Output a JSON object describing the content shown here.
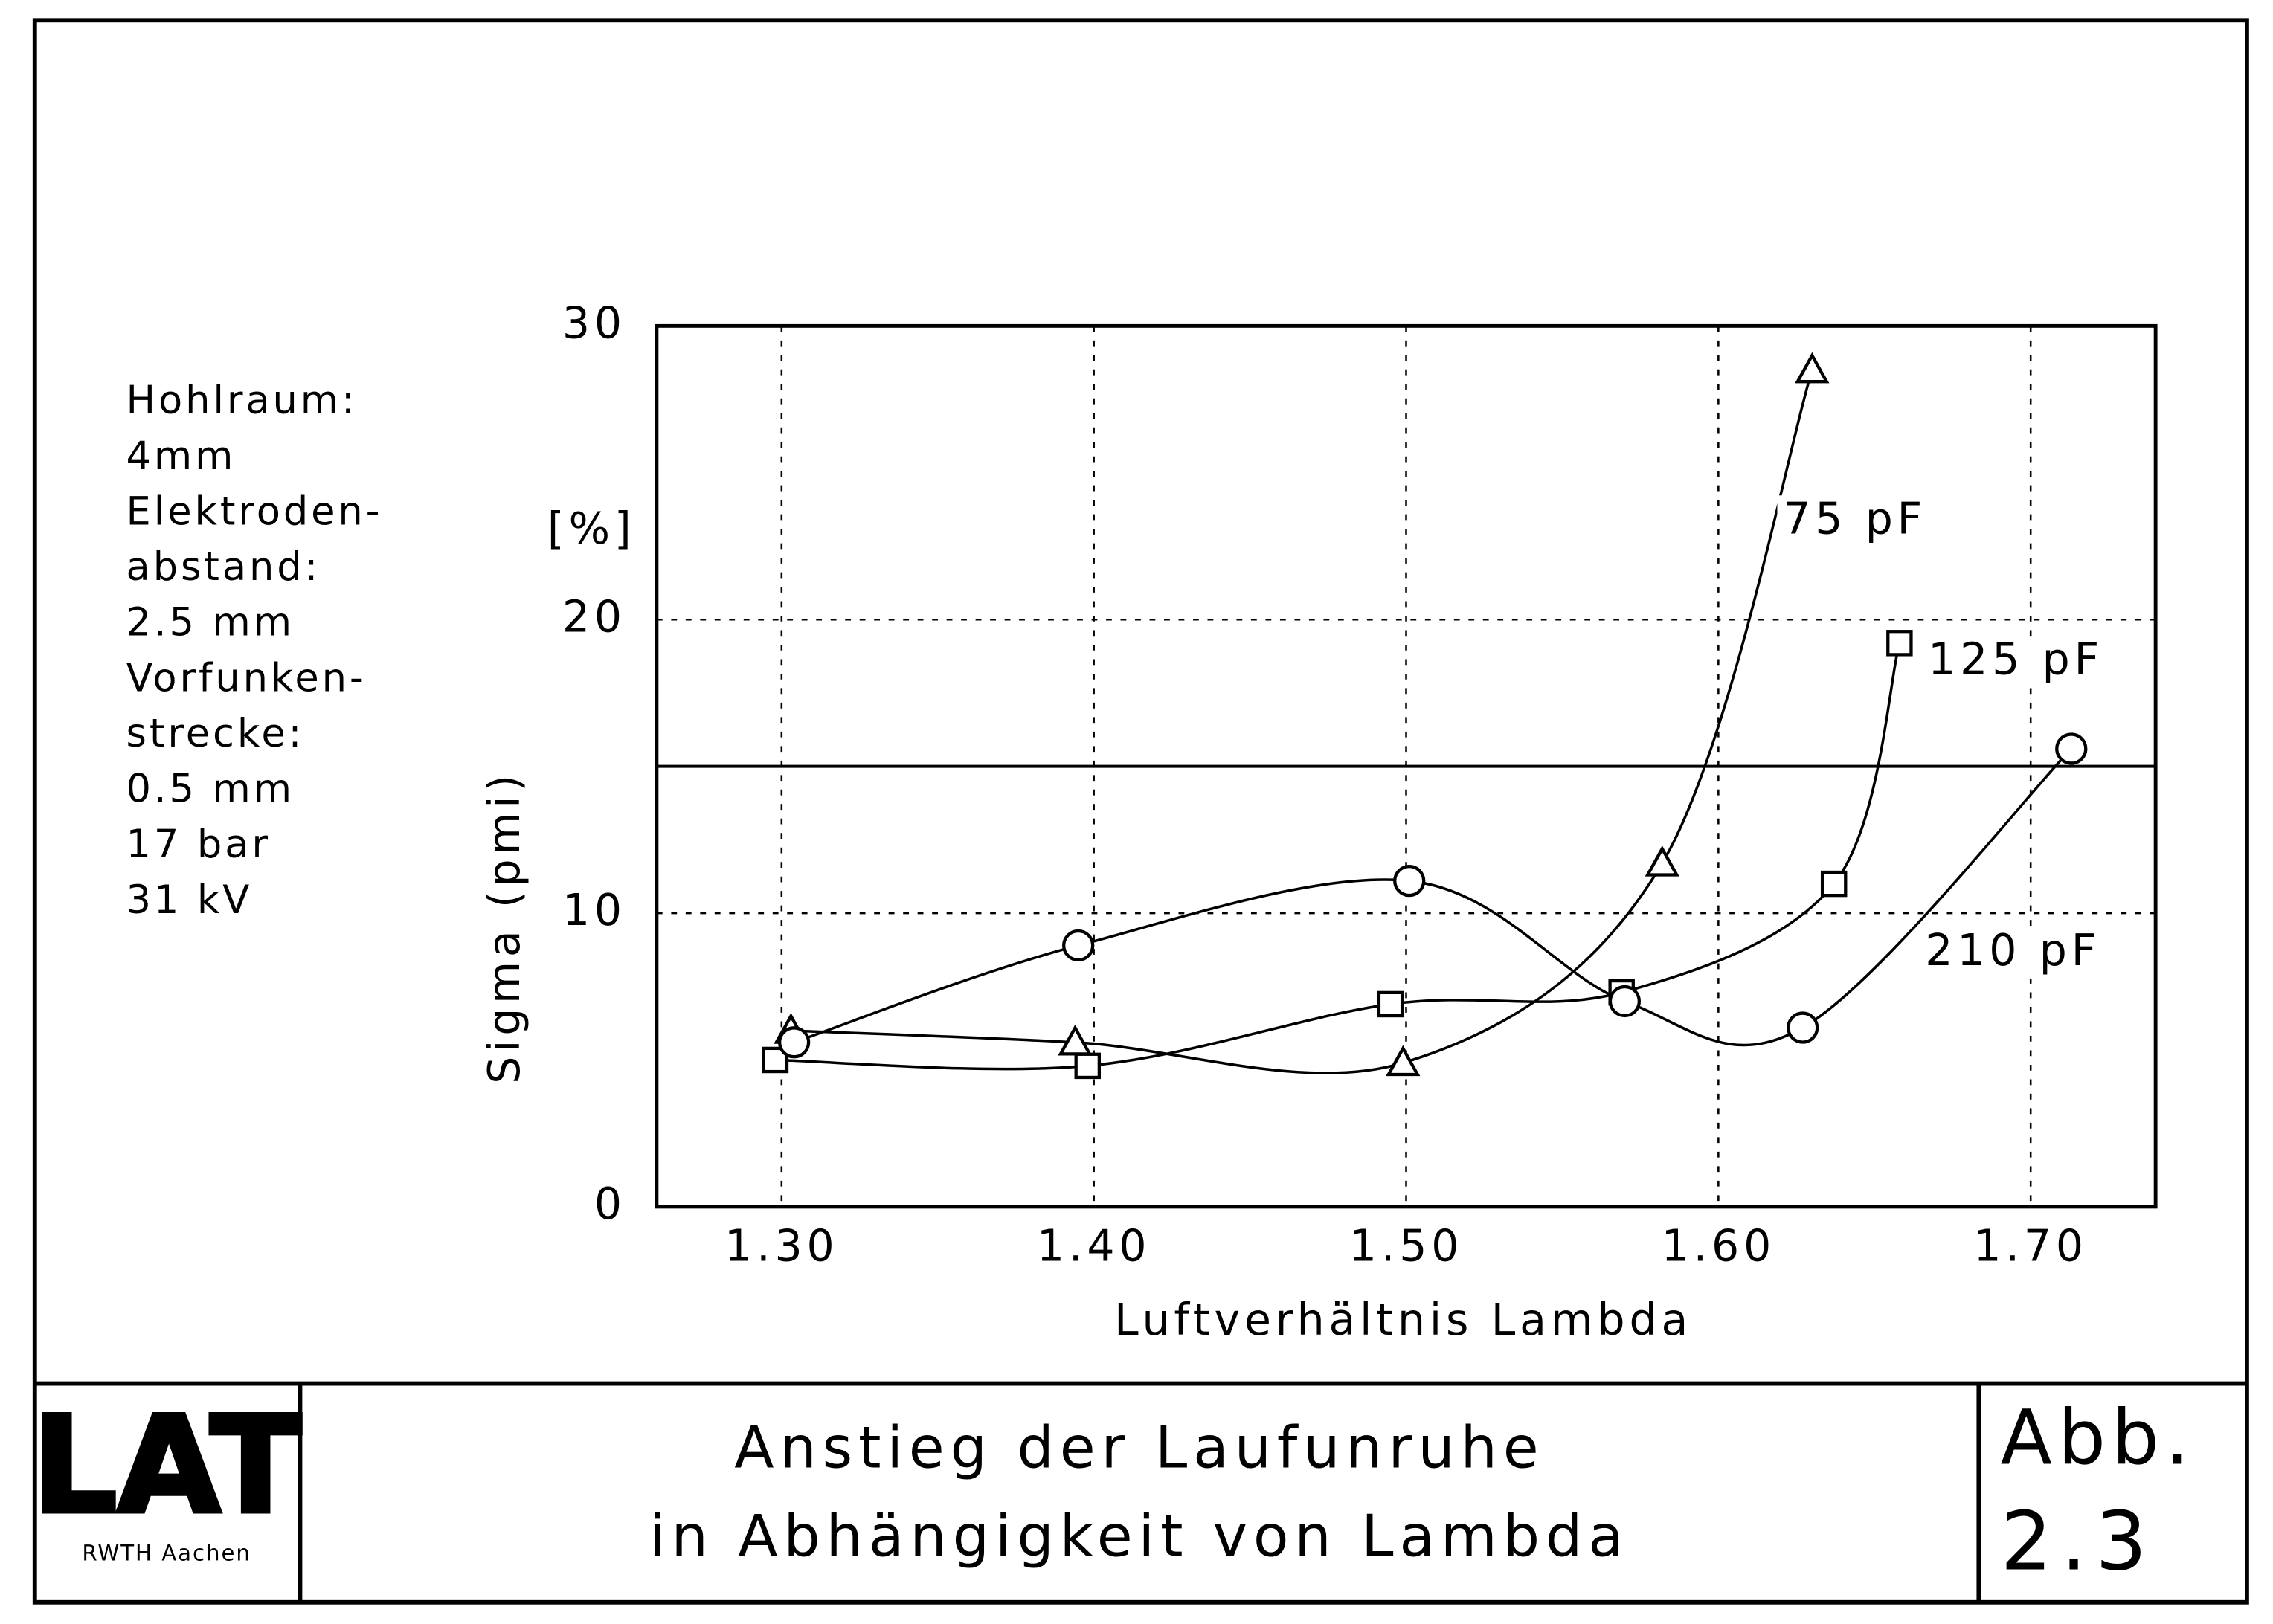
{
  "notes": [
    "Hohlraum:",
    "4mm",
    "Elektroden-",
    "abstand:",
    "2.5 mm",
    "Vorfunken-",
    "strecke:",
    "0.5 mm",
    "17 bar",
    "31 kV"
  ],
  "chart_data": {
    "type": "line",
    "x_label": "Luftverhältnis Lambda",
    "y_label": "Sigma (pmi)",
    "y_unit": "[%]",
    "xlim": [
      1.26,
      1.74
    ],
    "ylim": [
      0,
      30
    ],
    "xticks": [
      {
        "value": 1.3,
        "label": "1.30"
      },
      {
        "value": 1.4,
        "label": "1.40"
      },
      {
        "value": 1.5,
        "label": "1.50"
      },
      {
        "value": 1.6,
        "label": "1.60"
      },
      {
        "value": 1.7,
        "label": "1.70"
      }
    ],
    "yticks": [
      0,
      10,
      20,
      30
    ],
    "grid": true,
    "hline": 15,
    "series": [
      {
        "name": "75 pF",
        "color": "#000000",
        "marker": "triangle",
        "x": [
          1.303,
          1.394,
          1.499,
          1.582,
          1.63
        ],
        "values": [
          6.0,
          5.6,
          4.9,
          11.7,
          28.5
        ]
      },
      {
        "name": "125 pF",
        "color": "#000000",
        "marker": "square",
        "x": [
          1.298,
          1.398,
          1.495,
          1.569,
          1.637,
          1.658
        ],
        "values": [
          5.0,
          4.8,
          6.9,
          7.3,
          11.0,
          19.2
        ]
      },
      {
        "name": "210 pF",
        "color": "#000000",
        "marker": "circle",
        "x": [
          1.304,
          1.395,
          1.501,
          1.57,
          1.627,
          1.713
        ],
        "values": [
          5.6,
          8.9,
          11.1,
          7.0,
          6.1,
          15.6
        ]
      }
    ]
  },
  "footer": {
    "logo": "LAT",
    "institution": "RWTH Aachen",
    "title": [
      "Anstieg der Laufunruhe",
      "in Abhängigkeit von Lambda"
    ],
    "figure_label": "Abb.",
    "figure_number": "2.3"
  }
}
